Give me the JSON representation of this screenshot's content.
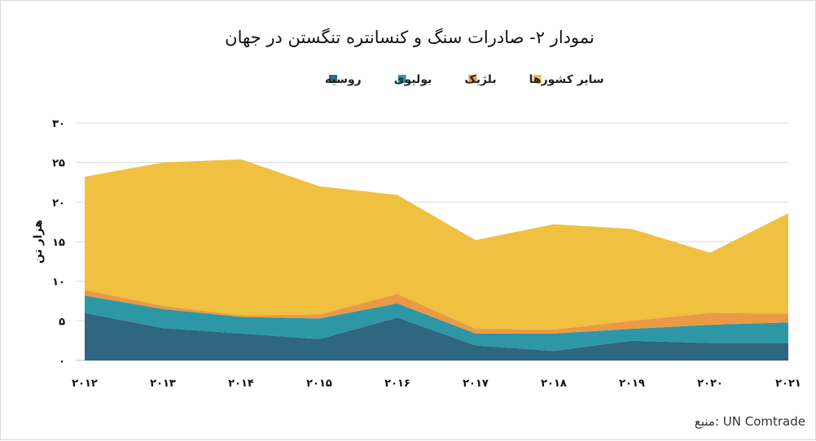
{
  "chart_data": {
    "type": "area",
    "stacked": true,
    "title": "نمودار ۲- صادرات سنگ و کنسانتره تنگستن در جهان",
    "ylabel": "هزار تن",
    "xlabel": "",
    "x": [
      "۲۰۱۲",
      "۲۰۱۳",
      "۲۰۱۴",
      "۲۰۱۵",
      "۲۰۱۶",
      "۲۰۱۷",
      "۲۰۱۸",
      "۲۰۱۹",
      "۲۰۲۰",
      "۲۰۲۱"
    ],
    "ylim": [
      0,
      30
    ],
    "yticks": [
      0,
      5,
      10,
      15,
      20,
      25,
      30
    ],
    "ytick_labels": [
      "۰",
      "۵",
      "۱۰",
      "۱۵",
      "۲۰",
      "۲۵",
      "۳۰"
    ],
    "grid": true,
    "legend_position": "top",
    "series": [
      {
        "name": "روسیه",
        "color": "#2f6680",
        "values": [
          6.0,
          4.1,
          3.4,
          2.7,
          5.4,
          1.9,
          1.2,
          2.5,
          2.2,
          2.2
        ]
      },
      {
        "name": "بولیوی",
        "color": "#2e97a6",
        "values": [
          2.2,
          2.4,
          2.1,
          2.6,
          1.8,
          1.5,
          2.2,
          1.5,
          2.3,
          2.6
        ]
      },
      {
        "name": "بلژیک",
        "color": "#ea9a45",
        "values": [
          0.7,
          0.4,
          0.2,
          0.5,
          1.2,
          0.6,
          0.5,
          1.0,
          1.5,
          1.1
        ]
      },
      {
        "name": "سایر کشورها",
        "color": "#f0c040",
        "values": [
          14.3,
          18.1,
          19.7,
          16.2,
          12.5,
          11.2,
          13.3,
          11.6,
          7.6,
          12.7
        ]
      }
    ],
    "legend_order": [
      "روسیه",
      "بولیوی",
      "بلژیک",
      "سایر کشورها"
    ],
    "source": "منبع: UN Comtrade",
    "colors": {
      "grid": "#d9d9d9",
      "axis": "#bfbfbf"
    }
  }
}
